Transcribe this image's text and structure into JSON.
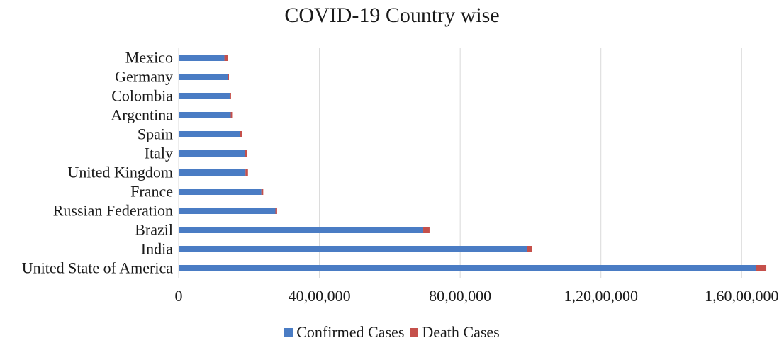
{
  "chart_data": {
    "type": "bar",
    "orientation": "horizontal",
    "stacked": true,
    "title": "COVID-19 Country wise",
    "xlabel": "",
    "ylabel": "",
    "categories": [
      "United State of America",
      "India",
      "Brazil",
      "Russian Federation",
      "France",
      "United Kingdom",
      "Italy",
      "Spain",
      "Argentina",
      "Colombia",
      "Germany",
      "Mexico"
    ],
    "series": [
      {
        "name": "Confirmed Cases",
        "color": "#4a7cc4",
        "values": [
          16400000,
          9900000,
          6950000,
          2750000,
          2350000,
          1900000,
          1880000,
          1750000,
          1480000,
          1450000,
          1400000,
          1300000
        ]
      },
      {
        "name": "Death Cases",
        "color": "#c5504b",
        "values": [
          300000,
          145000,
          180000,
          48000,
          54000,
          70000,
          66000,
          44000,
          40000,
          39000,
          30000,
          100000
        ]
      }
    ],
    "xlim": [
      0,
      16800000
    ],
    "xticks": [
      0,
      4000000,
      8000000,
      12000000,
      16000000
    ],
    "xtick_labels": [
      "0",
      "40,00,000",
      "80,00,000",
      "1,20,00,000",
      "1,60,00,000"
    ],
    "grid": true,
    "legend_position": "bottom"
  }
}
